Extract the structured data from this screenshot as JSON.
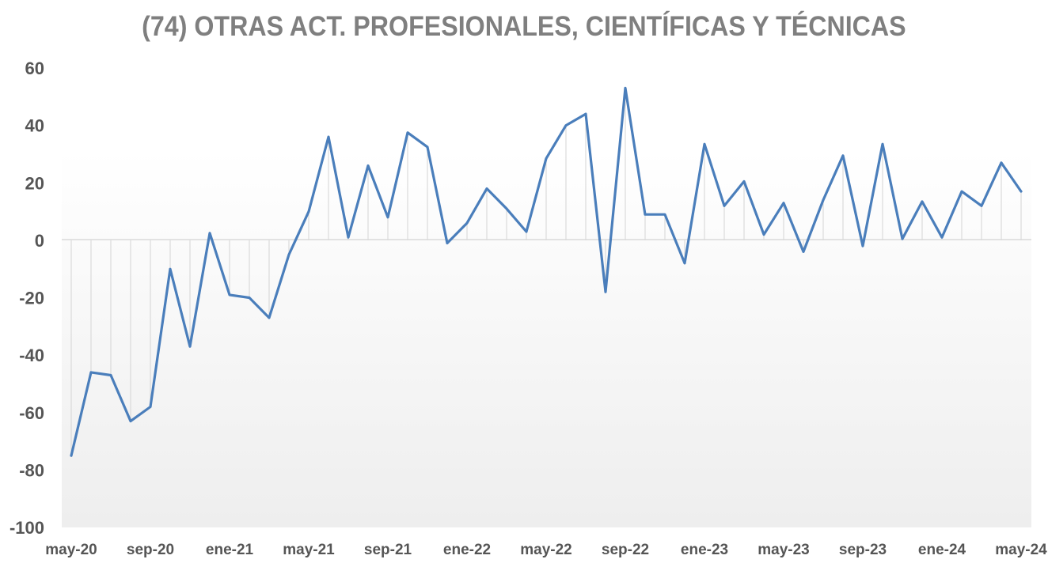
{
  "chart_data": {
    "type": "line",
    "title": "(74) OTRAS ACT. PROFESIONALES, CIENTÍFICAS Y TÉCNICAS",
    "xlabel": "",
    "ylabel": "",
    "ylim": [
      -100,
      60
    ],
    "yticks": [
      "60",
      "40",
      "20",
      "0",
      "-20",
      "-40",
      "-60",
      "-80",
      "-100"
    ],
    "xtick_labels": [
      "may-20",
      "sep-20",
      "ene-21",
      "may-21",
      "sep-21",
      "ene-22",
      "may-22",
      "sep-22",
      "ene-23",
      "may-23",
      "sep-23",
      "ene-24",
      "may-24"
    ],
    "x": [
      "may-20",
      "jun-20",
      "jul-20",
      "ago-20",
      "sep-20",
      "oct-20",
      "nov-20",
      "dic-20",
      "ene-21",
      "feb-21",
      "mar-21",
      "abr-21",
      "may-21",
      "jun-21",
      "jul-21",
      "ago-21",
      "sep-21",
      "oct-21",
      "nov-21",
      "dic-21",
      "ene-22",
      "feb-22",
      "mar-22",
      "abr-22",
      "may-22",
      "jun-22",
      "jul-22",
      "ago-22",
      "sep-22",
      "oct-22",
      "nov-22",
      "dic-22",
      "ene-23",
      "feb-23",
      "mar-23",
      "abr-23",
      "may-23",
      "jun-23",
      "jul-23",
      "ago-23",
      "sep-23",
      "oct-23",
      "nov-23",
      "dic-23",
      "ene-24",
      "feb-24",
      "mar-24",
      "abr-24",
      "may-24"
    ],
    "series": [
      {
        "color": "#4a7ebb",
        "values": [
          -75,
          -46,
          -47,
          -63,
          -58,
          -10,
          -37,
          2.5,
          -19,
          -20,
          -27,
          -5,
          10,
          36,
          1,
          26,
          8,
          37.5,
          32.5,
          -1,
          6,
          18,
          11,
          3,
          28.5,
          40,
          44,
          -18,
          53,
          9,
          9,
          -8,
          33.5,
          12,
          20.5,
          2,
          13,
          -4,
          14,
          29.5,
          -2,
          33.5,
          0.5,
          13.5,
          1,
          17,
          12,
          27,
          17
        ]
      }
    ],
    "grid": false,
    "drop_lines": true
  }
}
